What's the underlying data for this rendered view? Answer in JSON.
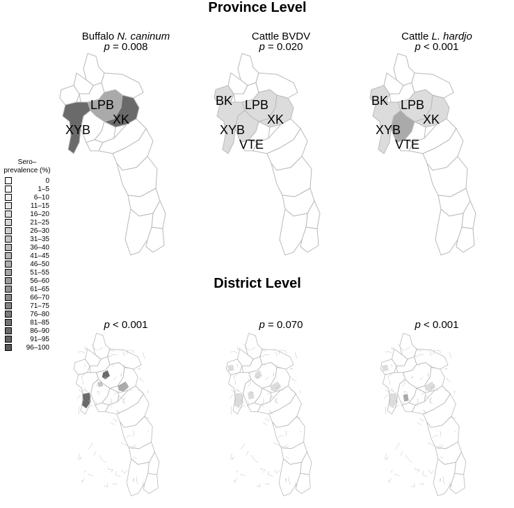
{
  "titles": {
    "province": "Province Level",
    "district": "District Level"
  },
  "panels": {
    "buffalo_neo": {
      "host": "Buffalo",
      "pathogen": "N. caninum",
      "p_sym": "p",
      "p_rest": " = 0.008"
    },
    "cattle_bvdv": {
      "host": "Cattle",
      "pathogen": "BVDV",
      "p_sym": "p",
      "p_rest": " = 0.020"
    },
    "cattle_lepto": {
      "host": "Cattle",
      "pathogen": "L. hardjo",
      "p_sym": "p",
      "p_rest": " < 0.001"
    },
    "district_1": {
      "p_sym": "p",
      "p_rest": " < 0.001"
    },
    "district_2": {
      "p_sym": "p",
      "p_rest": " = 0.070"
    },
    "district_3": {
      "p_sym": "p",
      "p_rest": " < 0.001"
    }
  },
  "province_labels": {
    "map1": [
      "LPB",
      "XK",
      "XYB"
    ],
    "map2": [
      "BK",
      "LPB",
      "XK",
      "XYB",
      "VTE"
    ],
    "map3": [
      "BK",
      "LPB",
      "XK",
      "XYB",
      "VTE"
    ]
  },
  "legend": {
    "title_line1": "Sero–",
    "title_line2": "prevalence (%)",
    "items": [
      {
        "label": "0",
        "color": "#ffffff"
      },
      {
        "label": "1–5",
        "color": "#f7f7f7"
      },
      {
        "label": "6–10",
        "color": "#efefef"
      },
      {
        "label": "11–15",
        "color": "#e6e6e6"
      },
      {
        "label": "16–20",
        "color": "#dedede"
      },
      {
        "label": "21–25",
        "color": "#d6d6d6"
      },
      {
        "label": "26–30",
        "color": "#cecece"
      },
      {
        "label": "31–35",
        "color": "#c6c6c6"
      },
      {
        "label": "36–40",
        "color": "#bdbdbd"
      },
      {
        "label": "41–45",
        "color": "#b5b5b5"
      },
      {
        "label": "46–50",
        "color": "#adadad"
      },
      {
        "label": "51–55",
        "color": "#a5a5a5"
      },
      {
        "label": "56–60",
        "color": "#9c9c9c"
      },
      {
        "label": "61–65",
        "color": "#949494"
      },
      {
        "label": "66–70",
        "color": "#8c8c8c"
      },
      {
        "label": "71–75",
        "color": "#848484"
      },
      {
        "label": "76–80",
        "color": "#7b7b7b"
      },
      {
        "label": "81–85",
        "color": "#737373"
      },
      {
        "label": "86–90",
        "color": "#6b6b6b"
      },
      {
        "label": "91–95",
        "color": "#636363"
      },
      {
        "label": "96–100",
        "color": "#5a5a5a"
      }
    ]
  },
  "colors": {
    "border": "#b8b8b8",
    "white": "#ffffff",
    "light": "#dcdcdc",
    "mid": "#c4c4c4",
    "midgray": "#aaaaaa",
    "dark": "#6a6a6a"
  }
}
